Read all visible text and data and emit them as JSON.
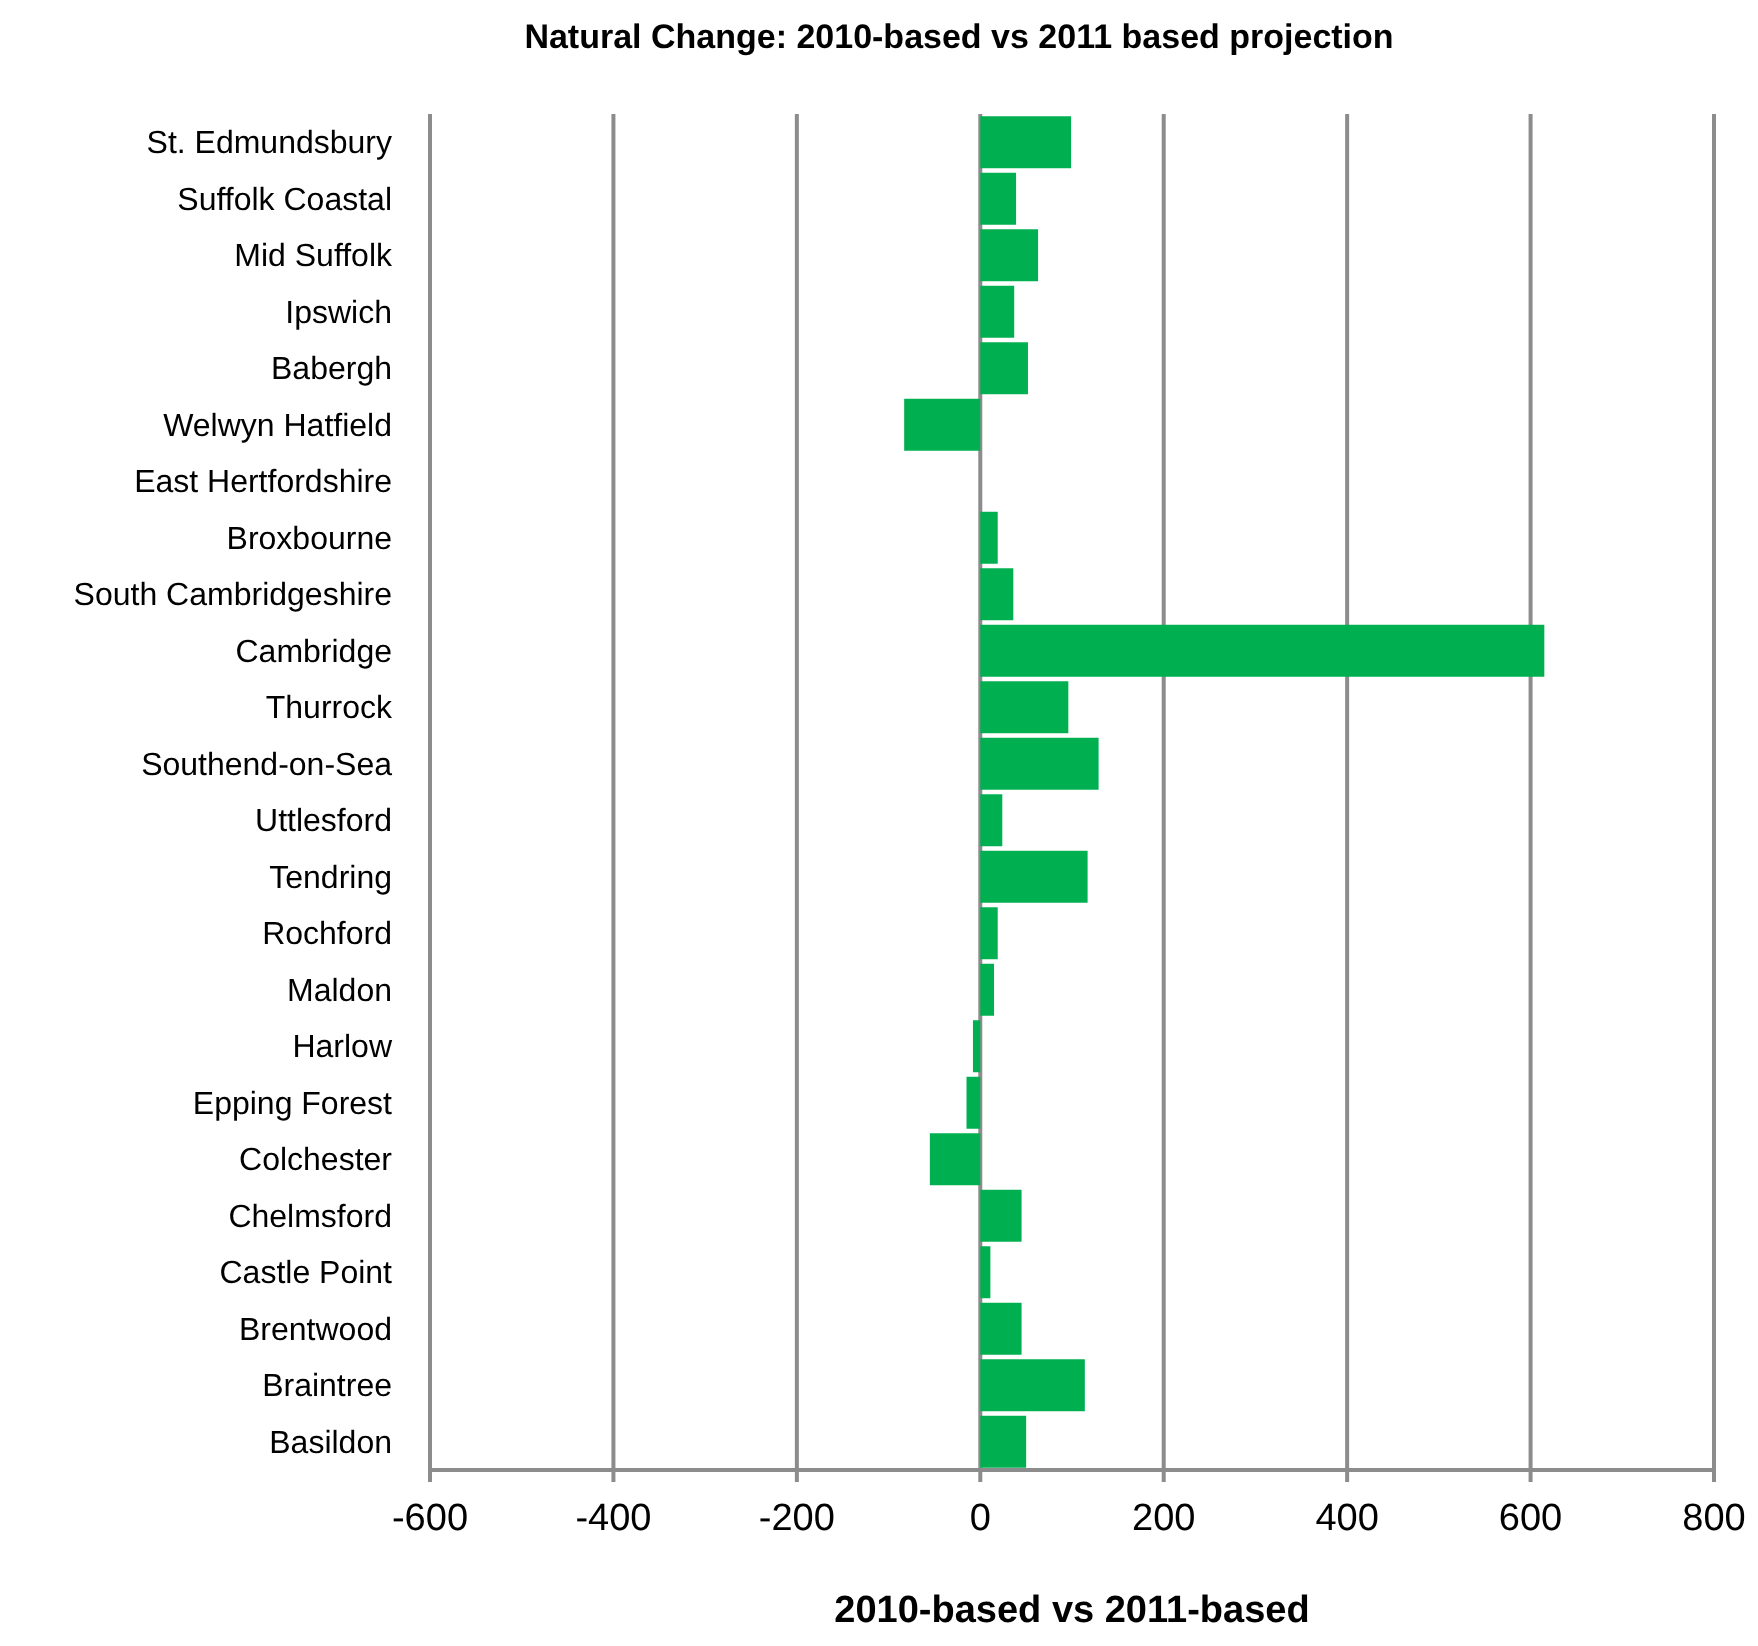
{
  "chart_data": {
    "type": "bar",
    "orientation": "horizontal",
    "title": "Natural Change: 2010-based vs 2011 based projection",
    "xlabel": "2010-based vs 2011-based",
    "categories": [
      "St. Edmundsbury",
      "Suffolk Coastal",
      "Mid Suffolk",
      "Ipswich",
      "Babergh",
      "Welwyn Hatfield",
      "East Hertfordshire",
      "Broxbourne",
      "South Cambridgeshire",
      "Cambridge",
      "Thurrock",
      "Southend-on-Sea",
      "Uttlesford",
      "Tendring",
      "Rochford",
      "Maldon",
      "Harlow",
      "Epping Forest",
      "Colchester",
      "Chelmsford",
      "Castle Point",
      "Brentwood",
      "Braintree",
      "Basildon"
    ],
    "values": [
      99,
      39,
      63,
      37,
      52,
      -83,
      0,
      19,
      36,
      615,
      96,
      129,
      24,
      117,
      19,
      15,
      -8,
      -15,
      -55,
      45,
      11,
      45,
      114,
      50
    ],
    "color": "#00b050",
    "xlim": [
      -600,
      800
    ],
    "xticks": [
      -600,
      -400,
      -200,
      0,
      200,
      400,
      600,
      800
    ],
    "grid": "x"
  }
}
